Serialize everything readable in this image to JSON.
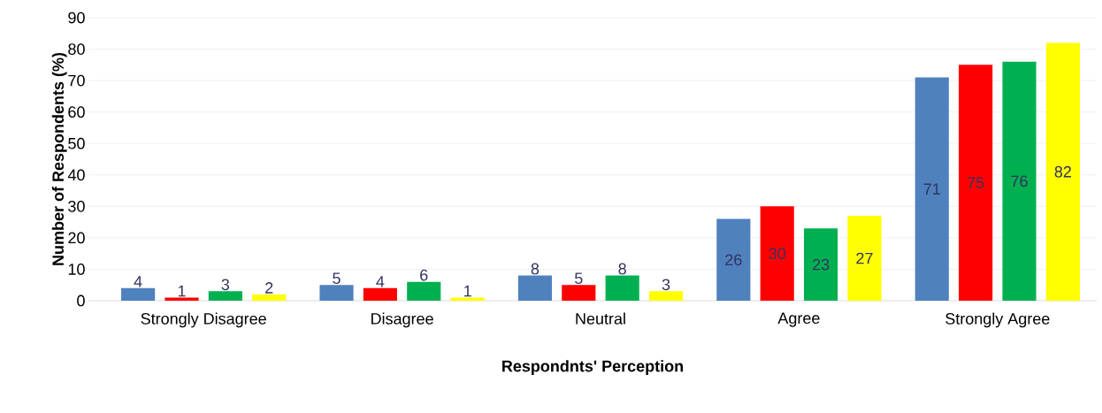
{
  "chart_data": {
    "type": "bar",
    "xlabel": "Respondnts' Perception",
    "ylabel": "Number of Respondents (%)",
    "categories": [
      "Strongly Disagree",
      "Disagree",
      "Neutral",
      "Agree",
      "Strongly Agree"
    ],
    "series": [
      {
        "color": "#4f81bd",
        "values": [
          4,
          5,
          8,
          26,
          71
        ]
      },
      {
        "color": "#ff0000",
        "values": [
          1,
          4,
          5,
          30,
          75
        ]
      },
      {
        "color": "#00b050",
        "values": [
          3,
          6,
          8,
          23,
          76
        ]
      },
      {
        "color": "#ffff00",
        "values": [
          2,
          1,
          3,
          27,
          82
        ]
      }
    ],
    "ylim": [
      0,
      90
    ],
    "yticks": [
      0,
      10,
      20,
      30,
      40,
      50,
      60,
      70,
      80,
      90
    ],
    "grid": "y",
    "data_labels": true
  }
}
